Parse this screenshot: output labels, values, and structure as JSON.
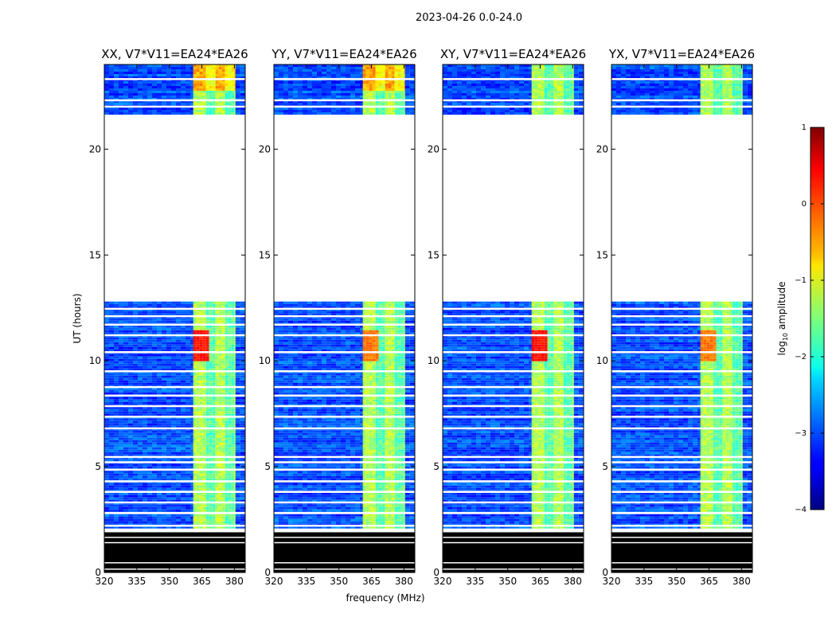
{
  "chart_data": {
    "type": "heatmap",
    "suptitle": "2023-04-26 0.0-24.0",
    "xlabel": "frequency (MHz)",
    "ylabel": "UT (hours)",
    "xlim": [
      320,
      385
    ],
    "ylim": [
      0,
      24
    ],
    "xticks": [
      {
        "value": 320,
        "label": "320"
      },
      {
        "value": 335,
        "label": "335"
      },
      {
        "value": 350,
        "label": "350"
      },
      {
        "value": 365,
        "label": "365"
      },
      {
        "value": 380,
        "label": "380"
      }
    ],
    "yticks": [
      {
        "value": 0,
        "label": "0"
      },
      {
        "value": 5,
        "label": "5"
      },
      {
        "value": 10,
        "label": "10"
      },
      {
        "value": 15,
        "label": "15"
      },
      {
        "value": 20,
        "label": "20"
      }
    ],
    "panels": [
      {
        "title": "XX, V7*V11=EA24*EA26",
        "polarization": "XX",
        "ylabel_shown": true,
        "xlabel_shown": false
      },
      {
        "title": "YY, V7*V11=EA24*EA26",
        "polarization": "YY",
        "ylabel_shown": false,
        "xlabel_shown": true
      },
      {
        "title": "XY, V7*V11=EA24*EA26",
        "polarization": "XY",
        "ylabel_shown": false,
        "xlabel_shown": false
      },
      {
        "title": "YX, V7*V11=EA24*EA26",
        "polarization": "YX",
        "ylabel_shown": false,
        "xlabel_shown": false
      }
    ],
    "data_coverage": {
      "bad_data_hours": [
        0,
        1.9
      ],
      "observed_hours": [
        [
          2.1,
          12.8
        ],
        [
          21.7,
          24
        ]
      ],
      "gap_hours": [
        12.8,
        21.7
      ],
      "rfi_band_mhz": [
        361,
        380.5
      ],
      "background_log10_amplitude": -3,
      "band_log10_amplitude": -1.5,
      "strong_feature_ut_hours": [
        10,
        11.5
      ],
      "strong_feature_log10_amplitude": 0.3
    },
    "colorbar": {
      "label": "log10 amplitude",
      "label_base": "log",
      "label_sub": "10",
      "label_rest": " amplitude",
      "range": [
        -4,
        1
      ],
      "colormap": "jet",
      "ticks": [
        {
          "value": 1,
          "label": "1"
        },
        {
          "value": 0,
          "label": "0"
        },
        {
          "value": -1,
          "label": "−1"
        },
        {
          "value": -2,
          "label": "−2"
        },
        {
          "value": -3,
          "label": "−3"
        },
        {
          "value": -4,
          "label": "−4"
        }
      ]
    }
  }
}
